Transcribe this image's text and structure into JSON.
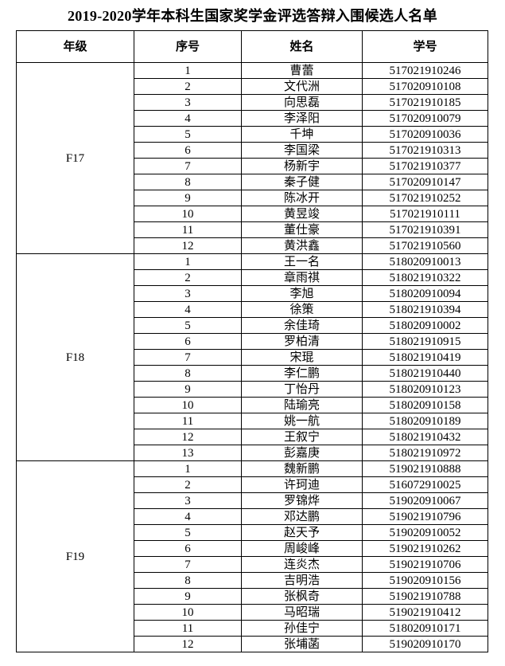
{
  "title": "2019-2020学年本科生国家奖学金评选答辩入围候选人名单",
  "headers": [
    "年级",
    "序号",
    "姓名",
    "学号"
  ],
  "groups": [
    {
      "grade": "F17",
      "rows": [
        [
          "1",
          "曹蕾",
          "517021910246"
        ],
        [
          "2",
          "文代洲",
          "517020910108"
        ],
        [
          "3",
          "向思磊",
          "517021910185"
        ],
        [
          "4",
          "李泽阳",
          "517020910079"
        ],
        [
          "5",
          "千坤",
          "517020910036"
        ],
        [
          "6",
          "李国梁",
          "517021910313"
        ],
        [
          "7",
          "杨新宇",
          "517021910377"
        ],
        [
          "8",
          "秦子健",
          "517020910147"
        ],
        [
          "9",
          "陈冰开",
          "517021910252"
        ],
        [
          "10",
          "黄昱竣",
          "517021910111"
        ],
        [
          "11",
          "董仕豪",
          "517021910391"
        ],
        [
          "12",
          "黄洪鑫",
          "517021910560"
        ]
      ]
    },
    {
      "grade": "F18",
      "rows": [
        [
          "1",
          "王一名",
          "518020910013"
        ],
        [
          "2",
          "章雨祺",
          "518021910322"
        ],
        [
          "3",
          "李旭",
          "518020910094"
        ],
        [
          "4",
          "徐策",
          "518021910394"
        ],
        [
          "5",
          "余佳琦",
          "518020910002"
        ],
        [
          "6",
          "罗柏清",
          "518021910915"
        ],
        [
          "7",
          "宋琨",
          "518021910419"
        ],
        [
          "8",
          "李仁鹏",
          "518021910440"
        ],
        [
          "9",
          "丁怡丹",
          "518020910123"
        ],
        [
          "10",
          "陆瑜亮",
          "518020910158"
        ],
        [
          "11",
          "姚一航",
          "518020910189"
        ],
        [
          "12",
          "王叙宁",
          "518021910432"
        ],
        [
          "13",
          "彭嘉庚",
          "518021910972"
        ]
      ]
    },
    {
      "grade": "F19",
      "rows": [
        [
          "1",
          "魏新鹏",
          "519021910888"
        ],
        [
          "2",
          "许珂迪",
          "516072910025"
        ],
        [
          "3",
          "罗锦烨",
          "519020910067"
        ],
        [
          "4",
          "邓达鹏",
          "519021910796"
        ],
        [
          "5",
          "赵天予",
          "519020910052"
        ],
        [
          "6",
          "周峻峰",
          "519021910262"
        ],
        [
          "7",
          "连炎杰",
          "519021910706"
        ],
        [
          "8",
          "吉明浩",
          "519020910156"
        ],
        [
          "9",
          "张枫奇",
          "519021910788"
        ],
        [
          "10",
          "马昭瑞",
          "519021910412"
        ],
        [
          "11",
          "孙佳宁",
          "518020910171"
        ],
        [
          "12",
          "张埔菡",
          "519020910170"
        ]
      ]
    }
  ]
}
